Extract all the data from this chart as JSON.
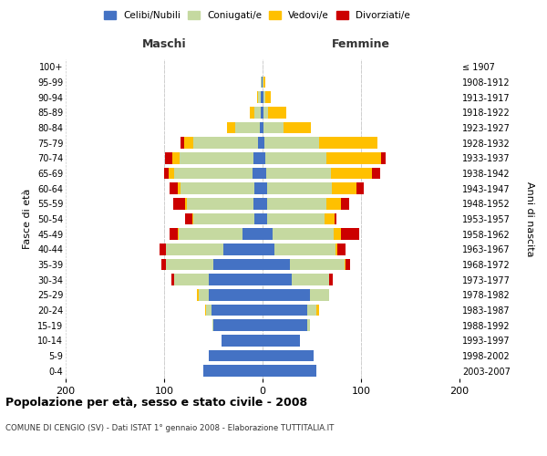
{
  "age_groups": [
    "0-4",
    "5-9",
    "10-14",
    "15-19",
    "20-24",
    "25-29",
    "30-34",
    "35-39",
    "40-44",
    "45-49",
    "50-54",
    "55-59",
    "60-64",
    "65-69",
    "70-74",
    "75-79",
    "80-84",
    "85-89",
    "90-94",
    "95-99",
    "100+"
  ],
  "birth_years": [
    "2003-2007",
    "1998-2002",
    "1993-1997",
    "1988-1992",
    "1983-1987",
    "1978-1982",
    "1973-1977",
    "1968-1972",
    "1963-1967",
    "1958-1962",
    "1953-1957",
    "1948-1952",
    "1943-1947",
    "1938-1942",
    "1933-1937",
    "1928-1932",
    "1923-1927",
    "1918-1922",
    "1913-1917",
    "1908-1912",
    "≤ 1907"
  ],
  "male": {
    "celibi": [
      60,
      55,
      42,
      50,
      52,
      55,
      55,
      50,
      40,
      20,
      8,
      9,
      8,
      10,
      9,
      5,
      3,
      2,
      2,
      1,
      0
    ],
    "coniugati": [
      0,
      0,
      0,
      1,
      5,
      10,
      35,
      48,
      58,
      65,
      62,
      68,
      75,
      80,
      75,
      65,
      25,
      6,
      3,
      1,
      0
    ],
    "vedovi": [
      0,
      0,
      0,
      0,
      1,
      2,
      0,
      0,
      0,
      1,
      1,
      2,
      3,
      5,
      8,
      10,
      8,
      5,
      1,
      0,
      0
    ],
    "divorziati": [
      0,
      0,
      0,
      0,
      0,
      0,
      3,
      5,
      7,
      8,
      8,
      12,
      8,
      5,
      7,
      3,
      0,
      0,
      0,
      0,
      0
    ]
  },
  "female": {
    "nubili": [
      55,
      52,
      38,
      45,
      45,
      48,
      30,
      28,
      12,
      10,
      5,
      5,
      5,
      4,
      3,
      2,
      1,
      1,
      1,
      0,
      0
    ],
    "coniugate": [
      0,
      0,
      0,
      3,
      10,
      20,
      38,
      55,
      62,
      62,
      58,
      60,
      65,
      65,
      62,
      55,
      20,
      5,
      2,
      1,
      0
    ],
    "vedove": [
      0,
      0,
      0,
      0,
      2,
      0,
      0,
      1,
      2,
      8,
      10,
      15,
      25,
      42,
      55,
      60,
      28,
      18,
      5,
      2,
      0
    ],
    "divorziate": [
      0,
      0,
      0,
      0,
      0,
      0,
      3,
      5,
      8,
      18,
      2,
      8,
      8,
      8,
      5,
      0,
      0,
      0,
      0,
      0,
      0
    ]
  },
  "colors": {
    "celibi": "#4472c4",
    "coniugati": "#c5d9a0",
    "vedovi": "#ffc000",
    "divorziati": "#cc0000"
  },
  "xlim": 200,
  "title": "Popolazione per età, sesso e stato civile - 2008",
  "subtitle": "COMUNE DI CENGIO (SV) - Dati ISTAT 1° gennaio 2008 - Elaborazione TUTTITALIA.IT",
  "xlabel_left": "Maschi",
  "xlabel_right": "Femmine",
  "ylabel_left": "Fasce di età",
  "ylabel_right": "Anni di nascita",
  "legend_labels": [
    "Celibi/Nubili",
    "Coniugati/e",
    "Vedovi/e",
    "Divorziati/e"
  ]
}
